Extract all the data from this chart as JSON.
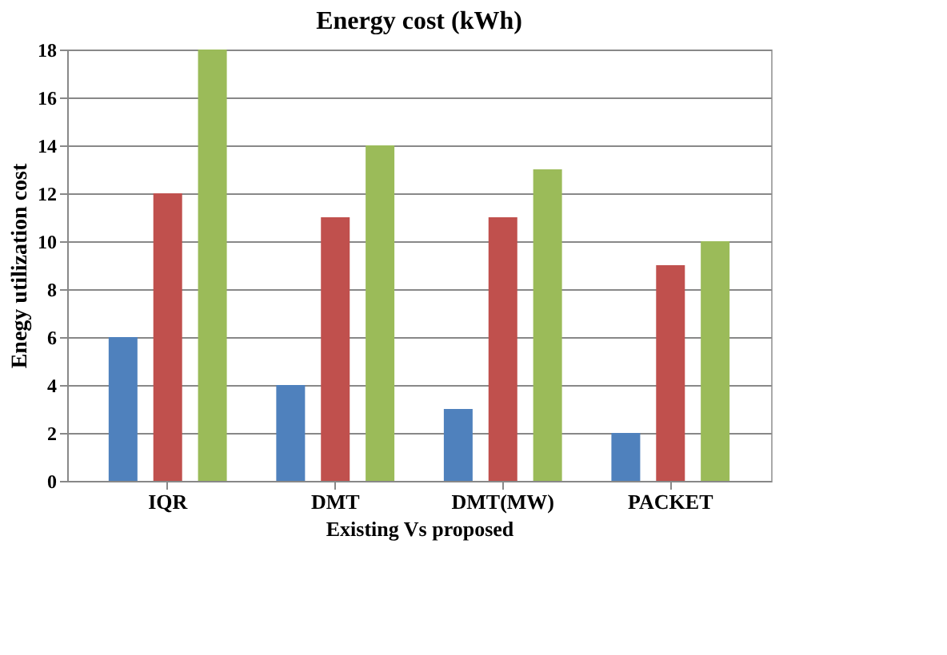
{
  "chart_data": {
    "type": "bar",
    "title": "Energy cost (kWh)",
    "xlabel": "Existing Vs proposed",
    "ylabel": "Enegy utilization cost",
    "categories": [
      "IQR",
      "DMT",
      "DMT(MW)",
      "PACKET"
    ],
    "series": [
      {
        "color": "#4f81bd",
        "values": [
          6,
          4,
          3,
          2
        ]
      },
      {
        "color": "#c0504d",
        "values": [
          12,
          11,
          11,
          9
        ]
      },
      {
        "color": "#9bbb59",
        "values": [
          18,
          14,
          13,
          10
        ]
      }
    ],
    "ylim": [
      0,
      18
    ],
    "yticks": [
      0,
      2,
      4,
      6,
      8,
      10,
      12,
      14,
      16,
      18
    ],
    "grid": "y",
    "legend": false
  }
}
